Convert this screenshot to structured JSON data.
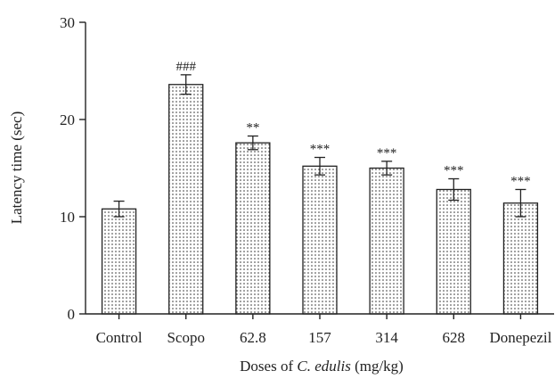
{
  "chart_data": {
    "type": "bar",
    "categories": [
      "Control",
      "Scopo",
      "62.8",
      "157",
      "314",
      "628",
      "Donepezil"
    ],
    "values": [
      10.8,
      23.6,
      17.6,
      15.2,
      15.0,
      12.8,
      11.4
    ],
    "errors": [
      0.8,
      1.0,
      0.7,
      0.9,
      0.7,
      1.1,
      1.4
    ],
    "annotations": [
      "",
      "###",
      "**",
      "***",
      "***",
      "***",
      "***"
    ],
    "title": "",
    "xlabel_parts": [
      {
        "text": "Doses of ",
        "italic": false
      },
      {
        "text": "C. edulis",
        "italic": true
      },
      {
        "text": " (mg/kg)",
        "italic": false
      }
    ],
    "ylabel": "Latency time (sec)",
    "ylim": [
      0,
      30
    ],
    "yticks": [
      0,
      10,
      20,
      30
    ],
    "bar_fill": "dotted",
    "grid": false,
    "legend": "none"
  }
}
